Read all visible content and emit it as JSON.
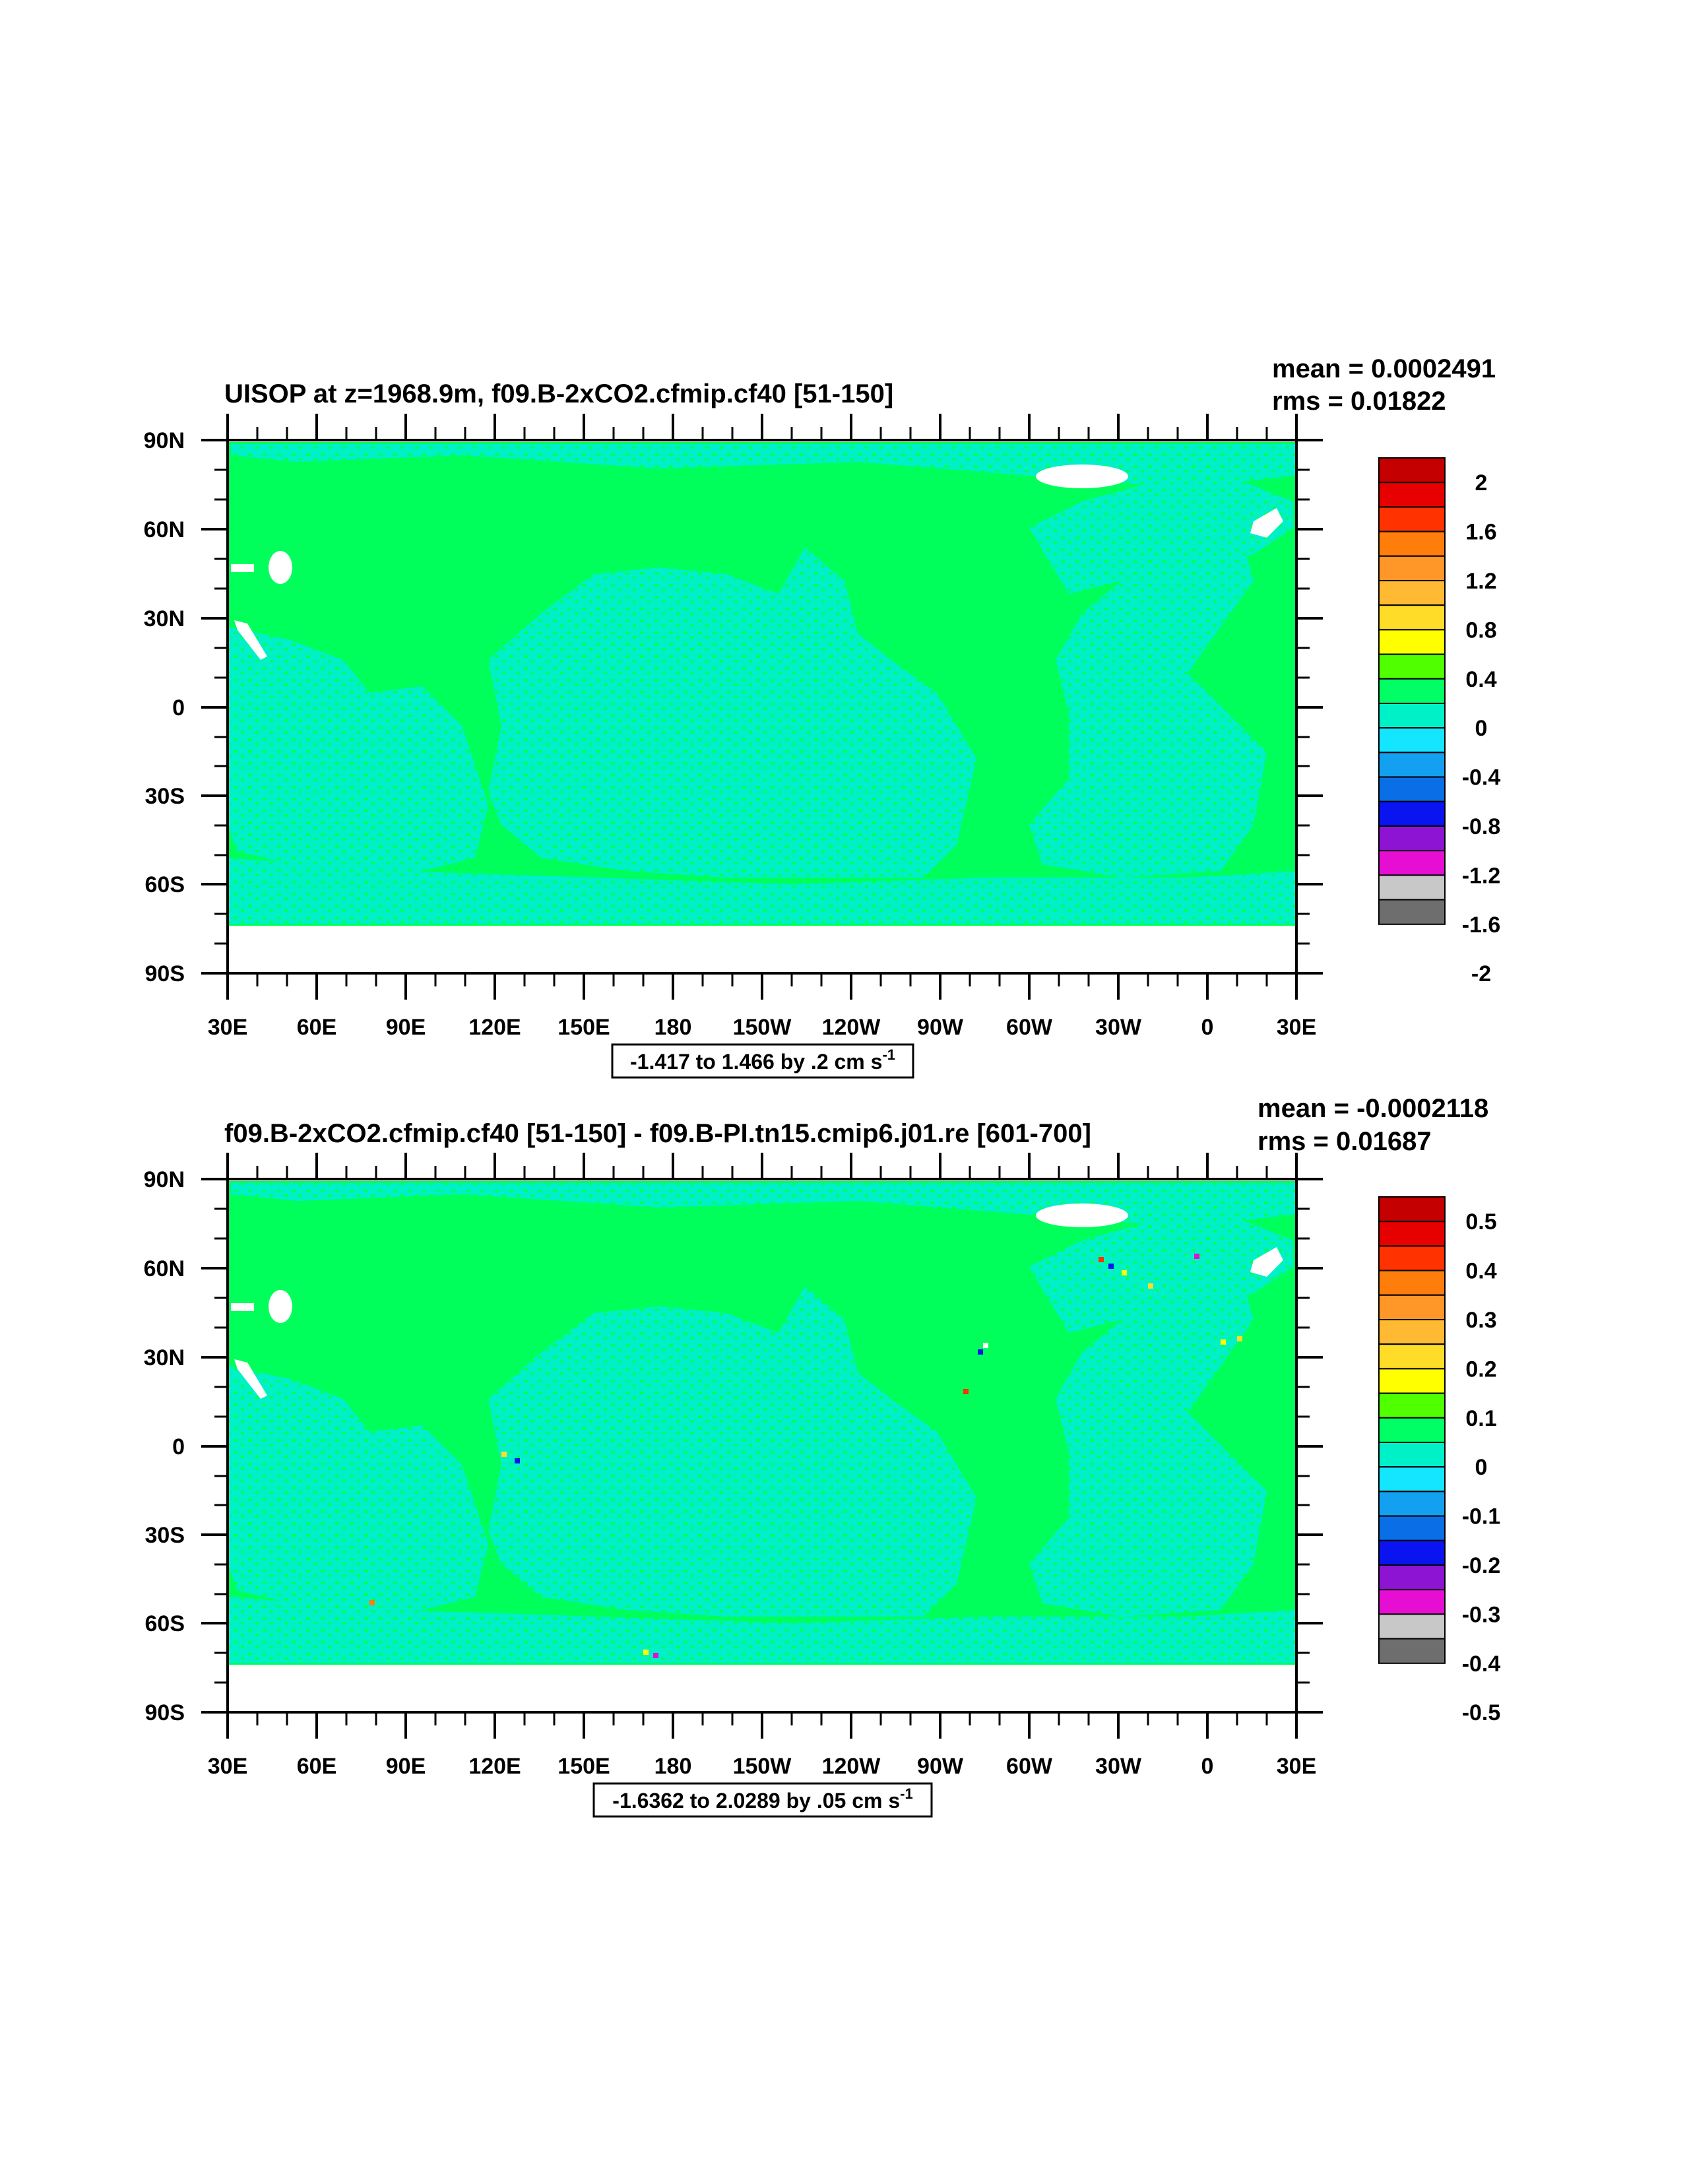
{
  "palette": [
    "#6e6e6e",
    "#c8c8c8",
    "#e60ed2",
    "#8c14d2",
    "#0a14f0",
    "#0a6ee6",
    "#14a0f0",
    "#14e6ff",
    "#00f0c8",
    "#00ff64",
    "#50ff00",
    "#ffff00",
    "#ffdc28",
    "#ffb932",
    "#ff9628",
    "#ff7d0a",
    "#ff3200",
    "#e60000",
    "#c40000"
  ],
  "land_color": "#00ff5a",
  "ocean_color": "#00f0c8",
  "lat_labels": [
    "90N",
    "60N",
    "30N",
    "0",
    "30S",
    "60S",
    "90S"
  ],
  "lon_labels": [
    "30E",
    "60E",
    "90E",
    "120E",
    "150E",
    "180",
    "150W",
    "120W",
    "90W",
    "60W",
    "30W",
    "0",
    "30E"
  ],
  "panels": [
    {
      "title": "UISOP at z=1968.9m, f09.B-2xCO2.cfmip.cf40 [51-150]",
      "mean": "mean = 0.0002491",
      "rms": "rms = 0.01822",
      "range_text": "-1.417 to 1.466 by .2 cm s",
      "range_exp": "-1",
      "colorbar_labels": [
        "2",
        "1.6",
        "1.2",
        "0.8",
        "0.4",
        "0",
        "-0.4",
        "-0.8",
        "-1.2",
        "-1.6",
        "-2"
      ]
    },
    {
      "title": "f09.B-2xCO2.cfmip.cf40 [51-150] - f09.B-PI.tn15.cmip6.j01.re [601-700]",
      "mean": "mean = -0.0002118",
      "rms": "rms = 0.01687",
      "range_text": "-1.6362 to 2.0289 by .05 cm s",
      "range_exp": "-1",
      "colorbar_labels": [
        "0.5",
        "0.4",
        "0.3",
        "0.2",
        "0.1",
        "0",
        "-0.1",
        "-0.2",
        "-0.3",
        "-0.4",
        "-0.5"
      ]
    }
  ]
}
